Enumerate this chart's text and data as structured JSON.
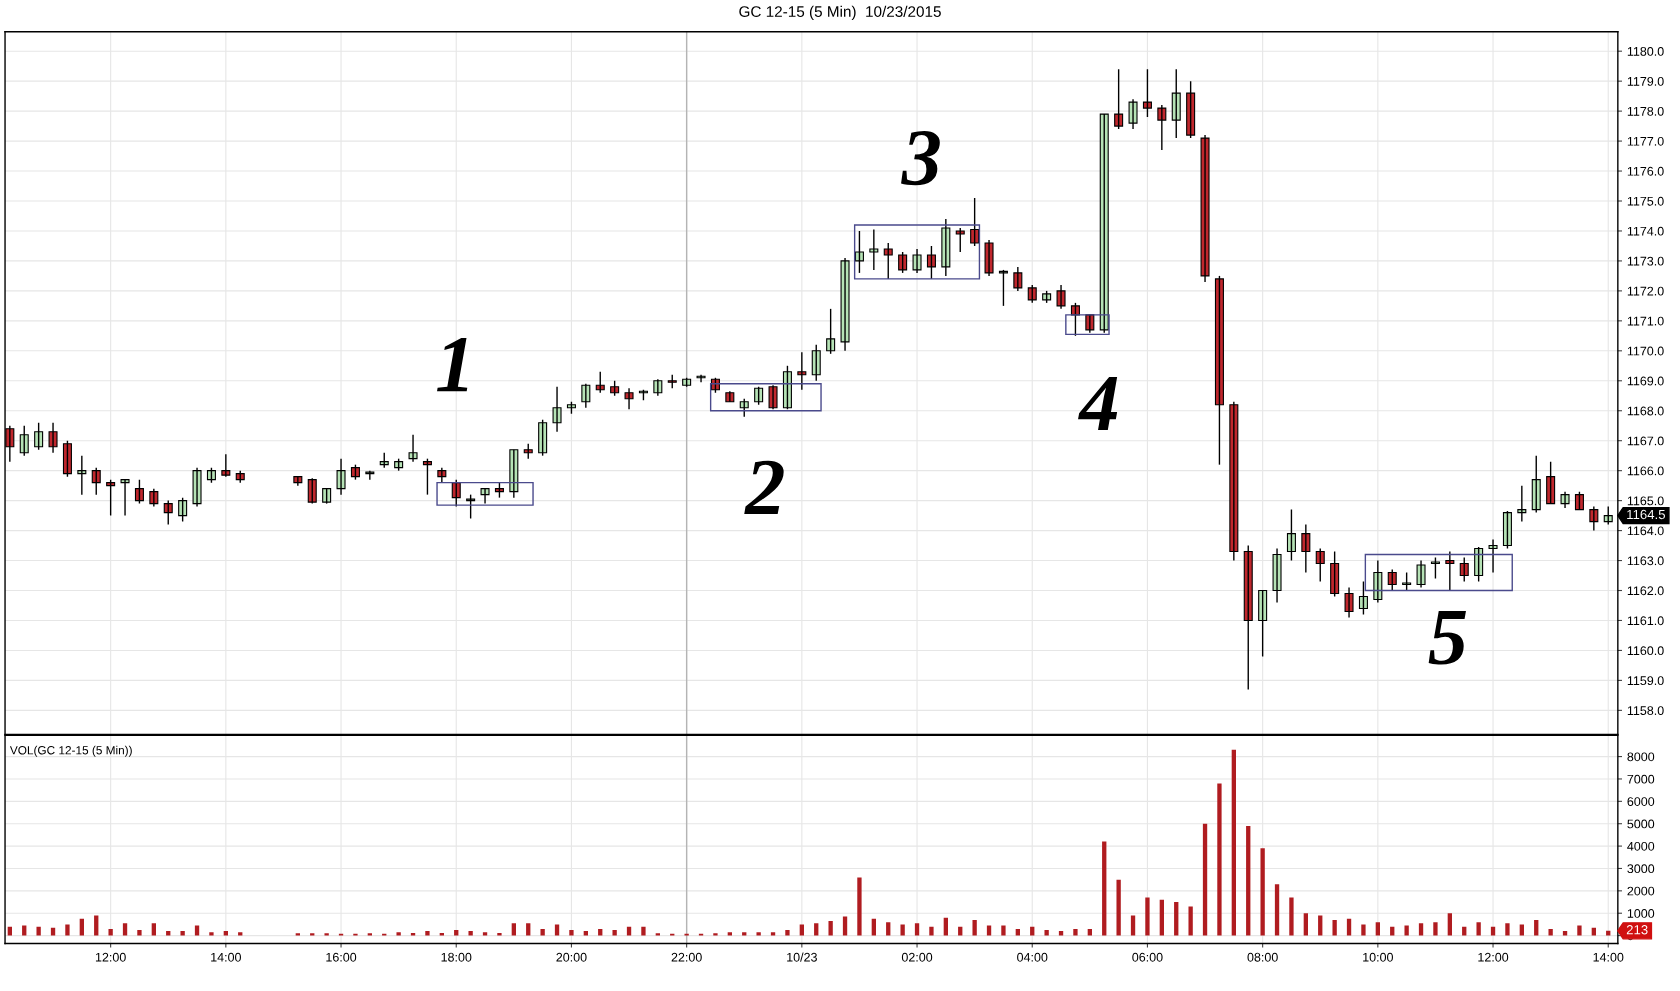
{
  "chart_data": [
    {
      "type": "candlestick",
      "title": "GC 12-15 (5 Min)  10/23/2015",
      "tick_labels": "y",
      "grid": true,
      "x": [
        "2015-10-22T10:15",
        "2015-10-22T10:30",
        "2015-10-22T10:45",
        "2015-10-22T11:00",
        "2015-10-22T11:15",
        "2015-10-22T11:30",
        "2015-10-22T11:45",
        "2015-10-22T12:00",
        "2015-10-22T12:15",
        "2015-10-22T12:30",
        "2015-10-22T12:45",
        "2015-10-22T13:00",
        "2015-10-22T13:15",
        "2015-10-22T13:30",
        "2015-10-22T13:45",
        "2015-10-22T14:00",
        "2015-10-22T14:15",
        "2015-10-22T15:15",
        "2015-10-22T15:30",
        "2015-10-22T15:45",
        "2015-10-22T16:00",
        "2015-10-22T16:15",
        "2015-10-22T16:30",
        "2015-10-22T16:45",
        "2015-10-22T17:00",
        "2015-10-22T17:15",
        "2015-10-22T17:30",
        "2015-10-22T17:45",
        "2015-10-22T18:00",
        "2015-10-22T18:15",
        "2015-10-22T18:30",
        "2015-10-22T18:45",
        "2015-10-22T19:00",
        "2015-10-22T19:15",
        "2015-10-22T19:30",
        "2015-10-22T19:45",
        "2015-10-22T20:00",
        "2015-10-22T20:15",
        "2015-10-22T20:30",
        "2015-10-22T20:45",
        "2015-10-22T21:00",
        "2015-10-22T21:15",
        "2015-10-22T21:30",
        "2015-10-22T21:45",
        "2015-10-22T22:00",
        "2015-10-22T22:15",
        "2015-10-22T22:30",
        "2015-10-22T22:45",
        "2015-10-22T23:00",
        "2015-10-22T23:15",
        "2015-10-22T23:30",
        "2015-10-22T23:45",
        "2015-10-23T00:00",
        "2015-10-23T00:15",
        "2015-10-23T00:30",
        "2015-10-23T00:45",
        "2015-10-23T01:00",
        "2015-10-23T01:15",
        "2015-10-23T01:30",
        "2015-10-23T01:45",
        "2015-10-23T02:00",
        "2015-10-23T02:15",
        "2015-10-23T02:30",
        "2015-10-23T02:45",
        "2015-10-23T03:00",
        "2015-10-23T03:15",
        "2015-10-23T03:30",
        "2015-10-23T03:45",
        "2015-10-23T04:00",
        "2015-10-23T04:15",
        "2015-10-23T04:30",
        "2015-10-23T04:45",
        "2015-10-23T05:00",
        "2015-10-23T05:15",
        "2015-10-23T05:30",
        "2015-10-23T05:45",
        "2015-10-23T06:00",
        "2015-10-23T06:15",
        "2015-10-23T06:30",
        "2015-10-23T06:45",
        "2015-10-23T07:00",
        "2015-10-23T07:15",
        "2015-10-23T07:30",
        "2015-10-23T07:45",
        "2015-10-23T08:00",
        "2015-10-23T08:15",
        "2015-10-23T08:30",
        "2015-10-23T08:45",
        "2015-10-23T09:00",
        "2015-10-23T09:15",
        "2015-10-23T09:30",
        "2015-10-23T09:45",
        "2015-10-23T10:00",
        "2015-10-23T10:15",
        "2015-10-23T10:30",
        "2015-10-23T10:45",
        "2015-10-23T11:00",
        "2015-10-23T11:15",
        "2015-10-23T11:30",
        "2015-10-23T11:45",
        "2015-10-23T12:00",
        "2015-10-23T12:15",
        "2015-10-23T12:30",
        "2015-10-23T12:45",
        "2015-10-23T13:00",
        "2015-10-23T13:15",
        "2015-10-23T13:30",
        "2015-10-23T13:45",
        "2015-10-23T14:00"
      ],
      "ohlc": [
        [
          1167.4,
          1167.5,
          1166.3,
          1166.8
        ],
        [
          1166.6,
          1167.5,
          1166.5,
          1167.2
        ],
        [
          1166.8,
          1167.6,
          1166.7,
          1167.3
        ],
        [
          1167.3,
          1167.6,
          1166.6,
          1166.8
        ],
        [
          1166.9,
          1167.0,
          1165.8,
          1165.9
        ],
        [
          1165.9,
          1166.5,
          1165.2,
          1166.0
        ],
        [
          1166.0,
          1166.1,
          1165.2,
          1165.6
        ],
        [
          1165.6,
          1165.7,
          1164.5,
          1165.5
        ],
        [
          1165.6,
          1165.7,
          1164.5,
          1165.7
        ],
        [
          1165.4,
          1165.7,
          1164.9,
          1165.0
        ],
        [
          1165.3,
          1165.4,
          1164.8,
          1164.9
        ],
        [
          1164.9,
          1165.0,
          1164.2,
          1164.6
        ],
        [
          1164.5,
          1165.1,
          1164.3,
          1165.0
        ],
        [
          1164.9,
          1166.1,
          1164.8,
          1166.0
        ],
        [
          1165.7,
          1166.1,
          1165.6,
          1166.0
        ],
        [
          1166.0,
          1166.55,
          1165.8,
          1165.85
        ],
        [
          1165.9,
          1166.0,
          1165.6,
          1165.7
        ],
        [
          1165.8,
          1165.8,
          1165.5,
          1165.6
        ],
        [
          1165.7,
          1165.75,
          1164.9,
          1164.95
        ],
        [
          1164.95,
          1165.4,
          1164.9,
          1165.4
        ],
        [
          1165.4,
          1166.4,
          1165.2,
          1166.0
        ],
        [
          1166.1,
          1166.2,
          1165.7,
          1165.8
        ],
        [
          1165.9,
          1166.0,
          1165.7,
          1165.95
        ],
        [
          1166.2,
          1166.6,
          1166.1,
          1166.3
        ],
        [
          1166.1,
          1166.4,
          1166.0,
          1166.3
        ],
        [
          1166.4,
          1167.2,
          1166.3,
          1166.6
        ],
        [
          1166.3,
          1166.4,
          1165.2,
          1166.2
        ],
        [
          1166.0,
          1166.1,
          1165.6,
          1165.8
        ],
        [
          1165.6,
          1165.7,
          1164.8,
          1165.1
        ],
        [
          1165.0,
          1165.2,
          1164.4,
          1165.05
        ],
        [
          1165.2,
          1165.4,
          1164.9,
          1165.4
        ],
        [
          1165.4,
          1165.6,
          1165.1,
          1165.3
        ],
        [
          1165.3,
          1166.7,
          1165.1,
          1166.7
        ],
        [
          1166.7,
          1166.9,
          1166.4,
          1166.6
        ],
        [
          1166.6,
          1167.7,
          1166.5,
          1167.6
        ],
        [
          1167.6,
          1168.8,
          1167.3,
          1168.1
        ],
        [
          1168.1,
          1168.3,
          1167.9,
          1168.2
        ],
        [
          1168.3,
          1168.9,
          1168.1,
          1168.85
        ],
        [
          1168.85,
          1169.3,
          1168.6,
          1168.7
        ],
        [
          1168.8,
          1169.0,
          1168.5,
          1168.6
        ],
        [
          1168.6,
          1168.75,
          1168.05,
          1168.4
        ],
        [
          1168.6,
          1168.7,
          1168.35,
          1168.65
        ],
        [
          1168.6,
          1169.05,
          1168.5,
          1169.0
        ],
        [
          1169.0,
          1169.2,
          1168.75,
          1168.95
        ],
        [
          1168.85,
          1169.1,
          1168.8,
          1169.05
        ],
        [
          1169.1,
          1169.2,
          1168.95,
          1169.15
        ],
        [
          1169.05,
          1169.1,
          1168.6,
          1168.7
        ],
        [
          1168.6,
          1168.65,
          1168.3,
          1168.3
        ],
        [
          1168.1,
          1168.4,
          1167.8,
          1168.3
        ],
        [
          1168.3,
          1168.8,
          1168.2,
          1168.75
        ],
        [
          1168.8,
          1168.85,
          1168.05,
          1168.1
        ],
        [
          1168.1,
          1169.5,
          1168.05,
          1169.3
        ],
        [
          1169.3,
          1169.95,
          1168.7,
          1169.2
        ],
        [
          1169.2,
          1170.2,
          1169.0,
          1170.0
        ],
        [
          1170.0,
          1171.4,
          1169.9,
          1170.4
        ],
        [
          1170.3,
          1173.1,
          1170.0,
          1173.0
        ],
        [
          1173.0,
          1174.0,
          1172.6,
          1173.3
        ],
        [
          1173.3,
          1174.05,
          1172.7,
          1173.4
        ],
        [
          1173.4,
          1173.6,
          1172.4,
          1173.2
        ],
        [
          1173.2,
          1173.3,
          1172.6,
          1172.7
        ],
        [
          1172.7,
          1173.4,
          1172.6,
          1173.2
        ],
        [
          1173.2,
          1173.5,
          1172.4,
          1172.8
        ],
        [
          1172.8,
          1174.4,
          1172.5,
          1174.1
        ],
        [
          1174.0,
          1174.1,
          1173.3,
          1173.9
        ],
        [
          1174.05,
          1175.1,
          1173.5,
          1173.6
        ],
        [
          1173.6,
          1173.7,
          1172.5,
          1172.6
        ],
        [
          1172.6,
          1172.7,
          1171.5,
          1172.65
        ],
        [
          1172.6,
          1172.8,
          1172.0,
          1172.1
        ],
        [
          1172.1,
          1172.2,
          1171.6,
          1171.7
        ],
        [
          1171.7,
          1172.0,
          1171.6,
          1171.9
        ],
        [
          1172.0,
          1172.2,
          1171.4,
          1171.5
        ],
        [
          1171.5,
          1171.6,
          1170.5,
          1171.2
        ],
        [
          1171.2,
          1171.2,
          1170.6,
          1170.7
        ],
        [
          1170.7,
          1177.9,
          1170.6,
          1177.9
        ],
        [
          1177.9,
          1179.4,
          1177.4,
          1177.5
        ],
        [
          1177.6,
          1178.4,
          1177.4,
          1178.3
        ],
        [
          1178.3,
          1179.4,
          1177.8,
          1178.1
        ],
        [
          1178.1,
          1178.2,
          1176.7,
          1177.7
        ],
        [
          1177.7,
          1179.4,
          1177.1,
          1178.6
        ],
        [
          1178.6,
          1179.0,
          1177.1,
          1177.2
        ],
        [
          1177.1,
          1177.2,
          1172.3,
          1172.5
        ],
        [
          1172.4,
          1172.5,
          1166.2,
          1168.2
        ],
        [
          1168.2,
          1168.3,
          1163.0,
          1163.3
        ],
        [
          1163.3,
          1163.5,
          1158.7,
          1161.0
        ],
        [
          1161.0,
          1162.0,
          1159.8,
          1162.0
        ],
        [
          1162.0,
          1163.4,
          1161.6,
          1163.2
        ],
        [
          1163.3,
          1164.7,
          1163.0,
          1163.9
        ],
        [
          1163.9,
          1164.2,
          1162.6,
          1163.3
        ],
        [
          1163.3,
          1163.4,
          1162.3,
          1162.9
        ],
        [
          1162.9,
          1163.3,
          1161.8,
          1161.9
        ],
        [
          1161.9,
          1162.1,
          1161.1,
          1161.3
        ],
        [
          1161.4,
          1162.3,
          1161.2,
          1161.8
        ],
        [
          1161.7,
          1163.0,
          1161.6,
          1162.6
        ],
        [
          1162.6,
          1162.7,
          1162.0,
          1162.2
        ],
        [
          1162.2,
          1162.6,
          1162.0,
          1162.25
        ],
        [
          1162.2,
          1163.0,
          1162.1,
          1162.85
        ],
        [
          1162.9,
          1163.1,
          1162.4,
          1162.95
        ],
        [
          1163.0,
          1163.3,
          1162.0,
          1162.9
        ],
        [
          1162.9,
          1163.1,
          1162.3,
          1162.5
        ],
        [
          1162.5,
          1163.45,
          1162.3,
          1163.4
        ],
        [
          1163.4,
          1163.7,
          1162.6,
          1163.5
        ],
        [
          1163.5,
          1164.65,
          1163.4,
          1164.6
        ],
        [
          1164.6,
          1165.5,
          1164.3,
          1164.7
        ],
        [
          1164.7,
          1166.5,
          1164.6,
          1165.7
        ],
        [
          1165.8,
          1166.3,
          1164.9,
          1164.9
        ],
        [
          1164.9,
          1165.3,
          1164.75,
          1165.2
        ],
        [
          1165.2,
          1165.3,
          1164.7,
          1164.7
        ],
        [
          1164.7,
          1164.8,
          1164.0,
          1164.3
        ],
        [
          1164.3,
          1164.8,
          1164.2,
          1164.5
        ]
      ],
      "colors": [
        "#c0272d",
        "#b6e3b6",
        "#b6e3b6",
        "#c0272d",
        "#c0272d",
        "#b6e3b6",
        "#c0272d",
        "#c0272d",
        "#b6e3b6",
        "#c0272d",
        "#c0272d",
        "#c0272d",
        "#b6e3b6",
        "#b6e3b6",
        "#b6e3b6",
        "#c0272d",
        "#c0272d",
        "#c0272d",
        "#c0272d",
        "#b6e3b6",
        "#b6e3b6",
        "#c0272d",
        "#b6e3b6",
        "#b6e3b6",
        "#b6e3b6",
        "#b6e3b6",
        "#c0272d",
        "#c0272d",
        "#c0272d",
        "#b6e3b6",
        "#b6e3b6",
        "#c0272d",
        "#b6e3b6",
        "#c0272d",
        "#b6e3b6",
        "#b6e3b6",
        "#b6e3b6",
        "#b6e3b6",
        "#c0272d",
        "#c0272d",
        "#c0272d",
        "#b6e3b6",
        "#b6e3b6",
        "#c0272d",
        "#b6e3b6",
        "#b6e3b6",
        "#c0272d",
        "#c0272d",
        "#b6e3b6",
        "#b6e3b6",
        "#c0272d",
        "#b6e3b6",
        "#c0272d",
        "#b6e3b6",
        "#b6e3b6",
        "#b6e3b6",
        "#b6e3b6",
        "#b6e3b6",
        "#c0272d",
        "#c0272d",
        "#b6e3b6",
        "#c0272d",
        "#b6e3b6",
        "#c0272d",
        "#c0272d",
        "#c0272d",
        "#b6e3b6",
        "#c0272d",
        "#c0272d",
        "#b6e3b6",
        "#c0272d",
        "#c0272d",
        "#c0272d",
        "#b6e3b6",
        "#c0272d",
        "#b6e3b6",
        "#c0272d",
        "#c0272d",
        "#b6e3b6",
        "#c0272d",
        "#c0272d",
        "#c0272d",
        "#c0272d",
        "#c0272d",
        "#b6e3b6",
        "#b6e3b6",
        "#b6e3b6",
        "#c0272d",
        "#c0272d",
        "#c0272d",
        "#c0272d",
        "#b6e3b6",
        "#b6e3b6",
        "#c0272d",
        "#b6e3b6",
        "#b6e3b6",
        "#b6e3b6",
        "#c0272d",
        "#c0272d",
        "#b6e3b6",
        "#b6e3b6",
        "#b6e3b6",
        "#b6e3b6",
        "#b6e3b6",
        "#c0272d",
        "#b6e3b6",
        "#c0272d",
        "#c0272d",
        "#b6e3b6"
      ],
      "value_labels": [
        null,
        null,
        null,
        null,
        null,
        null,
        null,
        null,
        null,
        null,
        null,
        null,
        null,
        null,
        null,
        null,
        null,
        null,
        null,
        null,
        null,
        null,
        null,
        null,
        null,
        null,
        null,
        null,
        null,
        null,
        null,
        null,
        null,
        null,
        null,
        null,
        null,
        null,
        null,
        null,
        null,
        null,
        null,
        null,
        null,
        null,
        null,
        null,
        null,
        null,
        null,
        null,
        null,
        null,
        null,
        null,
        null,
        null,
        null,
        null,
        null,
        null,
        null,
        null,
        null,
        null,
        null,
        null,
        null,
        null,
        null,
        null,
        null,
        null,
        null,
        null,
        null,
        null,
        null,
        null,
        null,
        null,
        null,
        null,
        null,
        null,
        null,
        null,
        null,
        null,
        null,
        null,
        null,
        null,
        null,
        null,
        null,
        null,
        null,
        null,
        null,
        null,
        null,
        null,
        null,
        null,
        null,
        null,
        "1164.5"
      ],
      "xlim": [
        "2015-10-22T10:10",
        "2015-10-23T14:10"
      ],
      "xticks": [
        {
          "value": "2015-10-22T12:00",
          "label": null
        },
        {
          "value": "2015-10-22T14:00",
          "label": null
        },
        {
          "value": "2015-10-22T16:00",
          "label": null
        },
        {
          "value": "2015-10-22T18:00",
          "label": null
        },
        {
          "value": "2015-10-22T20:00",
          "label": null
        },
        {
          "value": "2015-10-22T22:00",
          "label": null
        },
        {
          "value": "2015-10-23T00:00",
          "label": null
        },
        {
          "value": "2015-10-23T02:00",
          "label": null
        },
        {
          "value": "2015-10-23T04:00",
          "label": null
        },
        {
          "value": "2015-10-23T06:00",
          "label": null
        },
        {
          "value": "2015-10-23T08:00",
          "label": null
        },
        {
          "value": "2015-10-23T10:00",
          "label": null
        },
        {
          "value": "2015-10-23T12:00",
          "label": null
        },
        {
          "value": "2015-10-23T14:00",
          "label": null
        }
      ],
      "ylim": [
        1157.2,
        1180.65
      ],
      "yticks": [
        {
          "value": 1158,
          "label": "1158.0"
        },
        {
          "value": 1159,
          "label": "1159.0"
        },
        {
          "value": 1160,
          "label": "1160.0"
        },
        {
          "value": 1161,
          "label": "1161.0"
        },
        {
          "value": 1162,
          "label": "1162.0"
        },
        {
          "value": 1163,
          "label": "1163.0"
        },
        {
          "value": 1164,
          "label": "1164.0"
        },
        {
          "value": 1165,
          "label": "1165.0"
        },
        {
          "value": 1166,
          "label": "1166.0"
        },
        {
          "value": 1167,
          "label": "1167.0"
        },
        {
          "value": 1168,
          "label": "1168.0"
        },
        {
          "value": 1169,
          "label": "1169.0"
        },
        {
          "value": 1170,
          "label": "1170.0"
        },
        {
          "value": 1171,
          "label": "1171.0"
        },
        {
          "value": 1172,
          "label": "1172.0"
        },
        {
          "value": 1173,
          "label": "1173.0"
        },
        {
          "value": 1174,
          "label": "1174.0"
        },
        {
          "value": 1175,
          "label": "1175.0"
        },
        {
          "value": 1176,
          "label": "1176.0"
        },
        {
          "value": 1177,
          "label": "1177.0"
        },
        {
          "value": 1178,
          "label": "1178.0"
        },
        {
          "value": 1179,
          "label": "1179.0"
        },
        {
          "value": 1180,
          "label": "1180.0"
        }
      ],
      "ref_lines": [
        {
          "axis": "x",
          "value": "2015-10-22T22:00",
          "color": "#b4b4b4"
        }
      ],
      "annotations": [
        "1",
        "2",
        "3",
        "4",
        "5"
      ]
    },
    {
      "type": "bar",
      "grid": true,
      "x": [
        "2015-10-22T10:15",
        "2015-10-22T10:30",
        "2015-10-22T10:45",
        "2015-10-22T11:00",
        "2015-10-22T11:15",
        "2015-10-22T11:30",
        "2015-10-22T11:45",
        "2015-10-22T12:00",
        "2015-10-22T12:15",
        "2015-10-22T12:30",
        "2015-10-22T12:45",
        "2015-10-22T13:00",
        "2015-10-22T13:15",
        "2015-10-22T13:30",
        "2015-10-22T13:45",
        "2015-10-22T14:00",
        "2015-10-22T14:15",
        "2015-10-22T15:15",
        "2015-10-22T15:30",
        "2015-10-22T15:45",
        "2015-10-22T16:00",
        "2015-10-22T16:15",
        "2015-10-22T16:30",
        "2015-10-22T16:45",
        "2015-10-22T17:00",
        "2015-10-22T17:15",
        "2015-10-22T17:30",
        "2015-10-22T17:45",
        "2015-10-22T18:00",
        "2015-10-22T18:15",
        "2015-10-22T18:30",
        "2015-10-22T18:45",
        "2015-10-22T19:00",
        "2015-10-22T19:15",
        "2015-10-22T19:30",
        "2015-10-22T19:45",
        "2015-10-22T20:00",
        "2015-10-22T20:15",
        "2015-10-22T20:30",
        "2015-10-22T20:45",
        "2015-10-22T21:00",
        "2015-10-22T21:15",
        "2015-10-22T21:30",
        "2015-10-22T21:45",
        "2015-10-22T22:00",
        "2015-10-22T22:15",
        "2015-10-22T22:30",
        "2015-10-22T22:45",
        "2015-10-22T23:00",
        "2015-10-22T23:15",
        "2015-10-22T23:30",
        "2015-10-22T23:45",
        "2015-10-23T00:00",
        "2015-10-23T00:15",
        "2015-10-23T00:30",
        "2015-10-23T00:45",
        "2015-10-23T01:00",
        "2015-10-23T01:15",
        "2015-10-23T01:30",
        "2015-10-23T01:45",
        "2015-10-23T02:00",
        "2015-10-23T02:15",
        "2015-10-23T02:30",
        "2015-10-23T02:45",
        "2015-10-23T03:00",
        "2015-10-23T03:15",
        "2015-10-23T03:30",
        "2015-10-23T03:45",
        "2015-10-23T04:00",
        "2015-10-23T04:15",
        "2015-10-23T04:30",
        "2015-10-23T04:45",
        "2015-10-23T05:00",
        "2015-10-23T05:15",
        "2015-10-23T05:30",
        "2015-10-23T05:45",
        "2015-10-23T06:00",
        "2015-10-23T06:15",
        "2015-10-23T06:30",
        "2015-10-23T06:45",
        "2015-10-23T07:00",
        "2015-10-23T07:15",
        "2015-10-23T07:30",
        "2015-10-23T07:45",
        "2015-10-23T08:00",
        "2015-10-23T08:15",
        "2015-10-23T08:30",
        "2015-10-23T08:45",
        "2015-10-23T09:00",
        "2015-10-23T09:15",
        "2015-10-23T09:30",
        "2015-10-23T09:45",
        "2015-10-23T10:00",
        "2015-10-23T10:15",
        "2015-10-23T10:30",
        "2015-10-23T10:45",
        "2015-10-23T11:00",
        "2015-10-23T11:15",
        "2015-10-23T11:30",
        "2015-10-23T11:45",
        "2015-10-23T12:00",
        "2015-10-23T12:15",
        "2015-10-23T12:30",
        "2015-10-23T12:45",
        "2015-10-23T13:00",
        "2015-10-23T13:15",
        "2015-10-23T13:30",
        "2015-10-23T13:45",
        "2015-10-23T14:00"
      ],
      "values": [
        400,
        450,
        400,
        350,
        500,
        750,
        900,
        300,
        550,
        250,
        550,
        200,
        200,
        450,
        150,
        200,
        150,
        100,
        100,
        100,
        80,
        80,
        100,
        80,
        150,
        120,
        200,
        120,
        250,
        200,
        150,
        120,
        550,
        550,
        300,
        500,
        250,
        200,
        300,
        250,
        400,
        400,
        100,
        80,
        80,
        80,
        100,
        150,
        150,
        150,
        150,
        250,
        500,
        550,
        650,
        850,
        2600,
        750,
        600,
        500,
        550,
        400,
        800,
        400,
        700,
        450,
        450,
        300,
        400,
        250,
        200,
        300,
        300,
        4200,
        2500,
        900,
        1700,
        1600,
        1500,
        1300,
        5000,
        6800,
        8300,
        4900,
        3900,
        2300,
        1700,
        1000,
        900,
        700,
        750,
        500,
        600,
        400,
        450,
        550,
        600,
        1000,
        400,
        600,
        400,
        550,
        500,
        700,
        300,
        200,
        450,
        350,
        213
      ],
      "color": "#b01c20",
      "value_labels": [
        null,
        null,
        null,
        null,
        null,
        null,
        null,
        null,
        null,
        null,
        null,
        null,
        null,
        null,
        null,
        null,
        null,
        null,
        null,
        null,
        null,
        null,
        null,
        null,
        null,
        null,
        null,
        null,
        null,
        null,
        null,
        null,
        null,
        null,
        null,
        null,
        null,
        null,
        null,
        null,
        null,
        null,
        null,
        null,
        null,
        null,
        null,
        null,
        null,
        null,
        null,
        null,
        null,
        null,
        null,
        null,
        null,
        null,
        null,
        null,
        null,
        null,
        null,
        null,
        null,
        null,
        null,
        null,
        null,
        null,
        null,
        null,
        null,
        null,
        null,
        null,
        null,
        null,
        null,
        null,
        null,
        null,
        null,
        null,
        null,
        null,
        null,
        null,
        null,
        null,
        null,
        null,
        null,
        null,
        null,
        null,
        null,
        null,
        null,
        null,
        null,
        null,
        null,
        null,
        null,
        null,
        null,
        null,
        null
      ],
      "xlim": [
        "2015-10-22T10:10",
        "2015-10-23T14:10"
      ],
      "xticks": [
        {
          "value": "2015-10-22T12:00",
          "label": "12:00"
        },
        {
          "value": "2015-10-22T14:00",
          "label": "14:00"
        },
        {
          "value": "2015-10-22T16:00",
          "label": "16:00"
        },
        {
          "value": "2015-10-22T18:00",
          "label": "18:00"
        },
        {
          "value": "2015-10-22T20:00",
          "label": "20:00"
        },
        {
          "value": "2015-10-22T22:00",
          "label": "22:00"
        },
        {
          "value": "2015-10-23T00:00",
          "label": "10/23"
        },
        {
          "value": "2015-10-23T02:00",
          "label": "02:00"
        },
        {
          "value": "2015-10-23T04:00",
          "label": "04:00"
        },
        {
          "value": "2015-10-23T06:00",
          "label": "06:00"
        },
        {
          "value": "2015-10-23T08:00",
          "label": "08:00"
        },
        {
          "value": "2015-10-23T10:00",
          "label": "10:00"
        },
        {
          "value": "2015-10-23T12:00",
          "label": "12:00"
        },
        {
          "value": "2015-10-23T14:00",
          "label": "14:00"
        }
      ],
      "ylim": [
        -350,
        8950
      ],
      "yticks": [
        0,
        1000,
        2000,
        3000,
        4000,
        5000,
        6000,
        7000,
        8000
      ],
      "ref_lines": [
        {
          "axis": "x",
          "value": "2015-10-22T22:00",
          "color": "#b4b4b4"
        }
      ],
      "annotations": [
        "VOL(GC 12-15 (5 Min))",
        {
          "text": "213",
          "x": "2015-10-23T14:00",
          "y": 213
        }
      ]
    }
  ]
}
